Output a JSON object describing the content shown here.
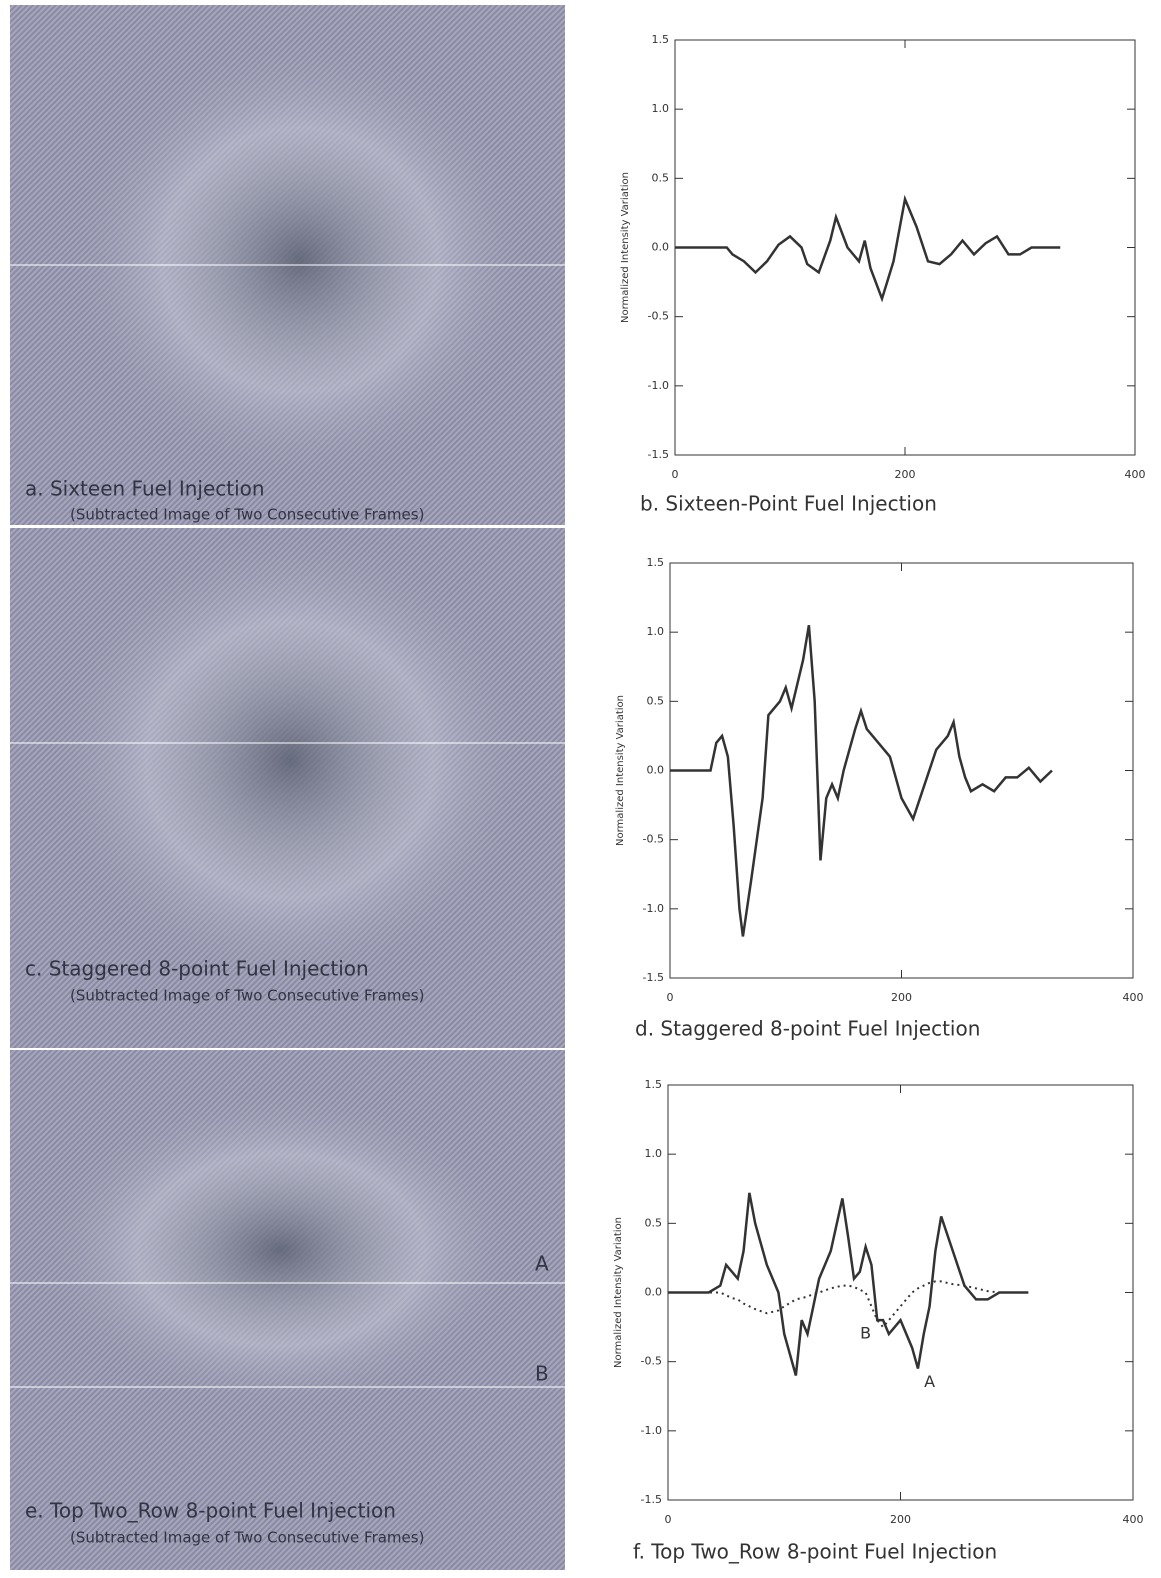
{
  "images": [
    {
      "caption": "a. Sixteen Fuel Injection",
      "note": "(Subtracted Image of Two Consecutive Frames)"
    },
    {
      "caption": "c. Staggered 8-point Fuel Injection",
      "note": "(Subtracted Image of Two Consecutive Frames)"
    },
    {
      "caption": "e. Top Two_Row 8-point Fuel Injection",
      "note": "(Subtracted Image of Two Consecutive Frames)",
      "labels": [
        "A",
        "B"
      ]
    }
  ],
  "chart_data": [
    {
      "type": "line",
      "title": "b. Sixteen-Point Fuel Injection",
      "ylabel": "Normalized Intensity Variation",
      "xlim": [
        0,
        400
      ],
      "xticks": [
        0,
        200,
        400
      ],
      "ylim": [
        -1.5,
        1.5
      ],
      "yticks": [
        -1.5,
        {
          "value": -1,
          "label": "-1.0"
        },
        -0.5,
        {
          "value": 0,
          "label": "0.0"
        },
        0.5,
        {
          "value": 1,
          "label": "1.0"
        },
        1.5
      ],
      "x": [
        0,
        45,
        50,
        60,
        70,
        80,
        90,
        100,
        110,
        115,
        125,
        135,
        140,
        150,
        160,
        165,
        170,
        180,
        190,
        200,
        210,
        220,
        230,
        240,
        250,
        260,
        270,
        280,
        290,
        300,
        310,
        320,
        335
      ],
      "series": [
        {
          "color": "#333333",
          "style": "solid",
          "values": [
            0,
            0,
            -0.05,
            -0.1,
            -0.18,
            -0.1,
            0.02,
            0.08,
            0,
            -0.12,
            -0.18,
            0.05,
            0.22,
            0,
            -0.1,
            0.05,
            -0.15,
            -0.37,
            -0.1,
            0.35,
            0.15,
            -0.1,
            -0.12,
            -0.05,
            0.05,
            -0.05,
            0.03,
            0.08,
            -0.05,
            -0.05,
            0,
            0,
            0
          ]
        }
      ]
    },
    {
      "type": "line",
      "title": "d. Staggered 8-point Fuel Injection",
      "ylabel": "Normalized Intensity Variation",
      "xlim": [
        0,
        400
      ],
      "xticks": [
        0,
        200,
        400
      ],
      "ylim": [
        -1.5,
        1.5
      ],
      "yticks": [
        -1.5,
        {
          "value": -1,
          "label": "-1.0"
        },
        -0.5,
        {
          "value": 0,
          "label": "0.0"
        },
        0.5,
        {
          "value": 1,
          "label": "1.0"
        },
        1.5
      ],
      "x": [
        0,
        35,
        40,
        45,
        50,
        55,
        60,
        63,
        70,
        80,
        85,
        95,
        100,
        105,
        115,
        120,
        125,
        130,
        135,
        140,
        145,
        150,
        160,
        165,
        170,
        180,
        190,
        200,
        210,
        220,
        230,
        240,
        245,
        250,
        255,
        260,
        270,
        280,
        290,
        300,
        310,
        320,
        330
      ],
      "series": [
        {
          "color": "#333333",
          "style": "solid",
          "values": [
            0,
            0,
            0.2,
            0.25,
            0.1,
            -0.4,
            -1,
            -1.2,
            -0.8,
            -0.2,
            0.4,
            0.5,
            0.6,
            0.45,
            0.8,
            1.05,
            0.5,
            -0.65,
            -0.2,
            -0.1,
            -0.2,
            0,
            0.3,
            0.43,
            0.3,
            0.2,
            0.1,
            -0.2,
            -0.35,
            -0.1,
            0.15,
            0.25,
            0.35,
            0.1,
            -0.05,
            -0.15,
            -0.1,
            -0.15,
            -0.05,
            -0.05,
            0.02,
            -0.08,
            0
          ]
        }
      ]
    },
    {
      "type": "line",
      "title": "f. Top Two_Row 8-point Fuel Injection",
      "ylabel": "Normalized Intensity Variation",
      "xlim": [
        0,
        400
      ],
      "xticks": [
        0,
        200,
        400
      ],
      "ylim": [
        -1.5,
        1.5
      ],
      "yticks": [
        -1.5,
        {
          "value": -1,
          "label": "-1.0"
        },
        -0.5,
        {
          "value": 0,
          "label": "0.0"
        },
        0.5,
        {
          "value": 1,
          "label": "1.0"
        },
        1.5
      ],
      "x": [
        0,
        35,
        45,
        50,
        55,
        60,
        65,
        70,
        75,
        85,
        95,
        100,
        110,
        115,
        120,
        125,
        130,
        140,
        150,
        155,
        160,
        165,
        170,
        175,
        180,
        185,
        190,
        200,
        210,
        215,
        220,
        225,
        230,
        235,
        245,
        255,
        265,
        275,
        285,
        295,
        310
      ],
      "series": [
        {
          "color": "#333333",
          "style": "solid",
          "values": [
            0,
            0,
            0.05,
            0.2,
            0.15,
            0.1,
            0.3,
            0.72,
            0.5,
            0.2,
            0,
            -0.3,
            -0.6,
            -0.2,
            -0.3,
            -0.1,
            0.1,
            0.3,
            0.68,
            0.4,
            0.1,
            0.15,
            0.33,
            0.2,
            -0.2,
            -0.2,
            -0.3,
            -0.2,
            -0.4,
            -0.55,
            -0.3,
            -0.1,
            0.3,
            0.55,
            0.3,
            0.05,
            -0.05,
            -0.05,
            0,
            0,
            0
          ]
        },
        {
          "color": "#333333",
          "style": "dotted",
          "values": [
            0,
            0,
            0,
            -0.02,
            -0.04,
            -0.05,
            -0.08,
            -0.1,
            -0.12,
            -0.15,
            -0.13,
            -0.1,
            -0.05,
            -0.04,
            -0.03,
            -0.01,
            0,
            0.03,
            0.05,
            0.05,
            0.04,
            0.02,
            0,
            -0.1,
            -0.2,
            -0.25,
            -0.2,
            -0.1,
            0,
            0.03,
            0.05,
            0.07,
            0.08,
            0.08,
            0.06,
            0.05,
            0.03,
            0.01,
            0,
            0,
            0
          ]
        }
      ],
      "annotations": [
        {
          "text": "A",
          "x": 225,
          "y": -0.65
        },
        {
          "text": "B",
          "x": 170,
          "y": -0.3
        }
      ]
    }
  ]
}
